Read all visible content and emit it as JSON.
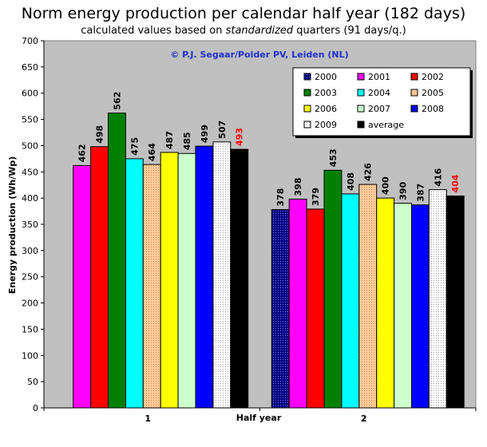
{
  "title": "Norm energy production per calendar half year (182 days)",
  "subtitle_pre": "calculated values based on ",
  "subtitle_em": "standardized",
  "subtitle_post": " quarters (91 days/q.)",
  "copyright": "© P.J. Segaar/Polder PV, Leiden (NL)",
  "chart_data": {
    "type": "bar",
    "categories": [
      "1",
      "2"
    ],
    "xlabel": "Half year",
    "ylabel": "Energy production (Wh/Wp)",
    "ylim": [
      0,
      700
    ],
    "yticks": [
      0,
      50,
      100,
      150,
      200,
      250,
      300,
      350,
      400,
      450,
      500,
      550,
      600,
      650,
      700
    ],
    "grid": false,
    "legend_position": "top-right",
    "series": [
      {
        "name": "2000",
        "values": [
          null,
          378
        ],
        "color": "#000080",
        "pattern": "dots"
      },
      {
        "name": "2001",
        "values": [
          462,
          398
        ],
        "color": "#ff00ff"
      },
      {
        "name": "2002",
        "values": [
          498,
          379
        ],
        "color": "#ff0000"
      },
      {
        "name": "2003",
        "values": [
          562,
          453
        ],
        "color": "#008000"
      },
      {
        "name": "2004",
        "values": [
          475,
          408
        ],
        "color": "#00ffff"
      },
      {
        "name": "2005",
        "values": [
          464,
          426
        ],
        "color": "#ffcc99",
        "pattern": "dots"
      },
      {
        "name": "2006",
        "values": [
          487,
          400
        ],
        "color": "#ffff00"
      },
      {
        "name": "2007",
        "values": [
          485,
          390
        ],
        "color": "#ccffcc"
      },
      {
        "name": "2008",
        "values": [
          499,
          387
        ],
        "color": "#0000ff"
      },
      {
        "name": "2009",
        "values": [
          507,
          416
        ],
        "color": "#ffffff",
        "pattern": "dots"
      },
      {
        "name": "average",
        "values": [
          493,
          404
        ],
        "color": "#000000",
        "label_color": "#ff0000"
      }
    ]
  }
}
